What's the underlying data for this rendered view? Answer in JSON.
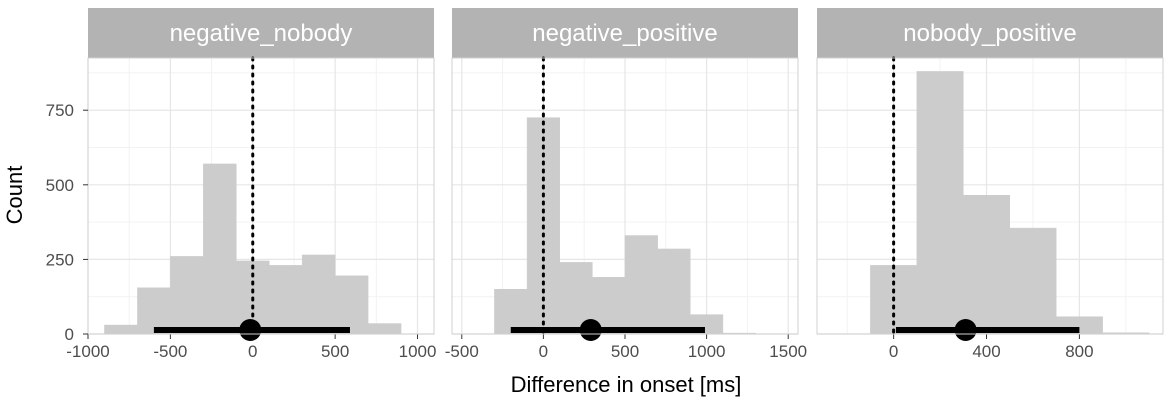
{
  "chart_data": {
    "type": "histogram",
    "xlabel": "Difference in onset [ms]",
    "ylabel": "Count",
    "ylim": [
      0,
      925
    ],
    "y_ticks": [
      0,
      250,
      500,
      750
    ],
    "y_tick_labels": [
      "0",
      "250",
      "500",
      "750"
    ],
    "colors": {
      "bar": "#cccccc",
      "strip": "#b3b3b3",
      "grid_major": "#e6e6e6",
      "grid_minor": "#f2f2f2",
      "interval": "#000000",
      "panel_border": "#d0d0d0"
    },
    "panels": [
      {
        "title": "negative_nobody",
        "xlim": [
          -1000,
          1100
        ],
        "x_ticks": [
          -1000,
          -500,
          0,
          500,
          1000
        ],
        "x_tick_labels": [
          "-1000",
          "-500",
          "0",
          "500",
          "1000"
        ],
        "bins": [
          {
            "x0": -900,
            "x1": -700,
            "count": 30
          },
          {
            "x0": -700,
            "x1": -500,
            "count": 155
          },
          {
            "x0": -500,
            "x1": -300,
            "count": 260
          },
          {
            "x0": -300,
            "x1": -100,
            "count": 570
          },
          {
            "x0": -100,
            "x1": 100,
            "count": 245
          },
          {
            "x0": 100,
            "x1": 300,
            "count": 230
          },
          {
            "x0": 300,
            "x1": 500,
            "count": 265
          },
          {
            "x0": 500,
            "x1": 700,
            "count": 195
          },
          {
            "x0": 700,
            "x1": 900,
            "count": 35
          }
        ],
        "point_estimate": -15,
        "interval": [
          -600,
          590
        ],
        "reference_line": 0
      },
      {
        "title": "negative_positive",
        "xlim": [
          -560,
          1560
        ],
        "x_ticks": [
          -500,
          0,
          500,
          1000,
          1500
        ],
        "x_tick_labels": [
          "-500",
          "0",
          "500",
          "1000",
          "1500"
        ],
        "bins": [
          {
            "x0": -300,
            "x1": -100,
            "count": 150
          },
          {
            "x0": -100,
            "x1": 100,
            "count": 725
          },
          {
            "x0": 100,
            "x1": 300,
            "count": 240
          },
          {
            "x0": 300,
            "x1": 500,
            "count": 190
          },
          {
            "x0": 500,
            "x1": 700,
            "count": 330
          },
          {
            "x0": 700,
            "x1": 900,
            "count": 285
          },
          {
            "x0": 900,
            "x1": 1100,
            "count": 65
          },
          {
            "x0": 1100,
            "x1": 1300,
            "count": 3
          }
        ],
        "point_estimate": 290,
        "interval": [
          -200,
          990
        ],
        "reference_line": 0
      },
      {
        "title": "nobody_positive",
        "xlim": [
          -330,
          1160
        ],
        "x_ticks": [
          0,
          400,
          800
        ],
        "x_tick_labels": [
          "0",
          "400",
          "800"
        ],
        "bins": [
          {
            "x0": -100,
            "x1": 100,
            "count": 230
          },
          {
            "x0": 100,
            "x1": 300,
            "count": 880
          },
          {
            "x0": 300,
            "x1": 500,
            "count": 465
          },
          {
            "x0": 500,
            "x1": 700,
            "count": 355
          },
          {
            "x0": 700,
            "x1": 900,
            "count": 58
          },
          {
            "x0": 900,
            "x1": 1100,
            "count": 4
          }
        ],
        "point_estimate": 310,
        "interval": [
          10,
          800
        ],
        "reference_line": 0
      }
    ]
  }
}
